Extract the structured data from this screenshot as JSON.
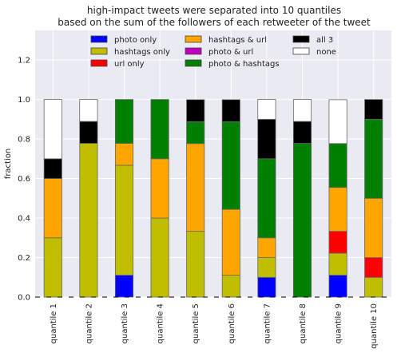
{
  "chart_data": {
    "type": "bar",
    "stacked": true,
    "title": [
      "high-impact tweets were separated into 10 quantiles",
      "based on the sum of the followers of each retweeter of the tweet"
    ],
    "xlabel": "",
    "ylabel": "fraction",
    "ylim": [
      0,
      1.35
    ],
    "yticks": [
      "0.0",
      "0.2",
      "0.4",
      "0.6",
      "0.8",
      "1.0",
      "1.2"
    ],
    "grid": true,
    "legend_placement": "top-center",
    "categories": [
      "quantile 1",
      "quantile 2",
      "quantile 3",
      "quantile 4",
      "quantile 5",
      "quantile 6",
      "quantile 7",
      "quantile 8",
      "quantile 9",
      "quantile 10"
    ],
    "series": [
      {
        "name": "photo only",
        "color": "#0000ff",
        "values": [
          0,
          0,
          0.111,
          0,
          0,
          0,
          0.1,
          0,
          0.111,
          0
        ]
      },
      {
        "name": "hashtags only",
        "color": "#bfbf00",
        "values": [
          0.3,
          0.778,
          0.556,
          0.4,
          0.333,
          0.111,
          0.1,
          0,
          0.111,
          0.1
        ]
      },
      {
        "name": "url only",
        "color": "#ff0000",
        "values": [
          0,
          0,
          0,
          0,
          0,
          0,
          0,
          0,
          0.111,
          0.1
        ]
      },
      {
        "name": "hashtags & url",
        "color": "#ffa500",
        "values": [
          0.3,
          0,
          0.111,
          0.3,
          0.444,
          0.333,
          0.1,
          0,
          0.222,
          0.3
        ]
      },
      {
        "name": "photo & url",
        "color": "#bf00bf",
        "values": [
          0,
          0,
          0,
          0,
          0,
          0,
          0,
          0,
          0,
          0
        ]
      },
      {
        "name": "photo & hashtags",
        "color": "#008000",
        "values": [
          0,
          0,
          0.222,
          0.3,
          0.111,
          0.444,
          0.4,
          0.778,
          0.222,
          0.4
        ]
      },
      {
        "name": "all 3",
        "color": "#000000",
        "values": [
          0.1,
          0.111,
          0,
          0,
          0.111,
          0.111,
          0.2,
          0.111,
          0,
          0.1
        ]
      },
      {
        "name": "none",
        "color": "#ffffff",
        "values": [
          0.3,
          0.111,
          0,
          0,
          0,
          0,
          0.1,
          0.111,
          0.222,
          0
        ]
      }
    ]
  }
}
